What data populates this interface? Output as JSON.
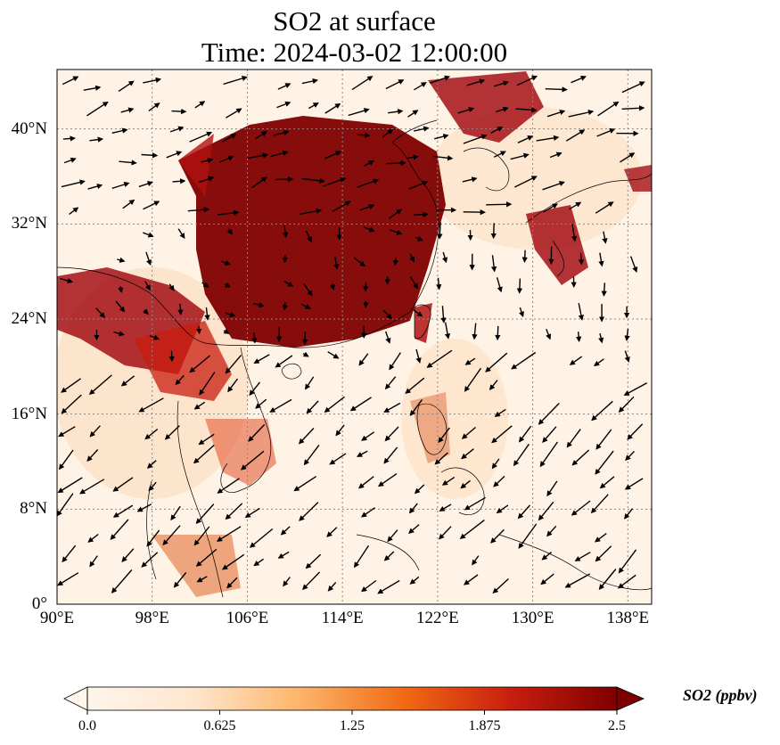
{
  "title": {
    "line1": "SO2 at surface",
    "line2": "Time: 2024-03-02 12:00:00"
  },
  "map": {
    "extent": {
      "lon": [
        90,
        140
      ],
      "lat": [
        0,
        45
      ]
    },
    "lon_ticks": [
      {
        "value": 90,
        "label": "90°E"
      },
      {
        "value": 98,
        "label": "98°E"
      },
      {
        "value": 106,
        "label": "106°E"
      },
      {
        "value": 114,
        "label": "114°E"
      },
      {
        "value": 122,
        "label": "122°E"
      },
      {
        "value": 130,
        "label": "130°E"
      },
      {
        "value": 138,
        "label": "138°E"
      }
    ],
    "lat_ticks": [
      {
        "value": 0,
        "label": "0°"
      },
      {
        "value": 8,
        "label": "8°N"
      },
      {
        "value": 16,
        "label": "16°N"
      },
      {
        "value": 24,
        "label": "24°N"
      },
      {
        "value": 32,
        "label": "32°N"
      },
      {
        "value": 40,
        "label": "40°N"
      }
    ],
    "gridlines": true
  },
  "colorbar": {
    "label": "SO2 (ppbv)",
    "min": 0.0,
    "max": 2.5,
    "extend": "both",
    "ticks": [
      {
        "value": 0,
        "label": "0.0"
      },
      {
        "value": 0.625,
        "label": "0.625"
      },
      {
        "value": 1.25,
        "label": "1.25"
      },
      {
        "value": 1.875,
        "label": "1.875"
      },
      {
        "value": 2.5,
        "label": "2.5"
      }
    ],
    "colormap": [
      "#fff5eb",
      "#fdd2a5",
      "#fd8d3c",
      "#d94801",
      "#a50f15",
      "#7f0000"
    ]
  }
}
